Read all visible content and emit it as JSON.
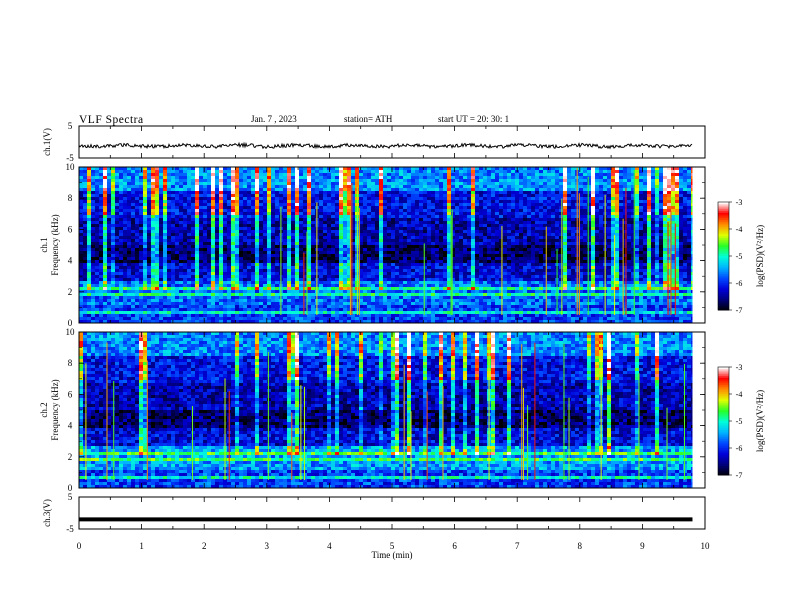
{
  "header": {
    "title": "VLF  Spectra",
    "date": "Jan.  7  , 2023",
    "station": "station= ATH",
    "start_ut": "start  UT  =   20: 30: 1"
  },
  "chart_data": [
    {
      "type": "line",
      "panel": "ch1-waveform",
      "ylabel": "ch.1(V)",
      "ylim": [
        -5,
        5
      ],
      "ytick_labels": [
        "5",
        "-5"
      ],
      "xlim": [
        0,
        10
      ],
      "series": [
        {
          "color": "#000000",
          "approx_level_volts": -1.2,
          "x_end_min": 9.8
        }
      ]
    },
    {
      "type": "heatmap",
      "panel": "ch1-spectrogram",
      "ylabel_line1": "ch.1",
      "ylabel_line2": "Frequency  (kHz)",
      "ylim": [
        0,
        10
      ],
      "ytick_labels": [
        "0",
        "2",
        "4",
        "6",
        "8",
        "10"
      ],
      "xlim": [
        0,
        10
      ],
      "data_x_end_min": 9.8,
      "colorbar": {
        "label": "log(PSD)(V²/Hz)",
        "range": [
          -7,
          -3
        ],
        "tick_labels": [
          "-7",
          "-6",
          "-5",
          "-4",
          "-3"
        ]
      }
    },
    {
      "type": "heatmap",
      "panel": "ch2-spectrogram",
      "ylabel_line1": "ch.2",
      "ylabel_line2": "Frequency  (kHz)",
      "ylim": [
        0,
        10
      ],
      "ytick_labels": [
        "0",
        "2",
        "4",
        "6",
        "8",
        "10"
      ],
      "xlim": [
        0,
        10
      ],
      "data_x_end_min": 9.8,
      "colorbar": {
        "label": "log(PSD)(V²/Hz)",
        "range": [
          -7,
          -3
        ],
        "tick_labels": [
          "-7",
          "-6",
          "-5",
          "-4",
          "-3"
        ]
      }
    },
    {
      "type": "line",
      "panel": "ch3-waveform",
      "ylabel": "ch.3(V)",
      "ylim": [
        -5,
        5
      ],
      "ytick_labels": [
        "5",
        "-5"
      ],
      "xlim": [
        0,
        10
      ],
      "series": [
        {
          "color": "#000000",
          "approx_level_volts": -2,
          "x_end_min": 9.8
        }
      ]
    }
  ],
  "x_axis": {
    "label": "Time  (min)",
    "tick_labels": [
      "0",
      "1",
      "2",
      "3",
      "4",
      "5",
      "6",
      "7",
      "8",
      "9",
      "10"
    ]
  },
  "colors": {
    "colormap": [
      "#000000",
      "#000078",
      "#0000d8",
      "#0048ff",
      "#00b4ff",
      "#00ffd8",
      "#28ff28",
      "#e0ff00",
      "#ff8c00",
      "#ff0000",
      "#ffffff"
    ]
  }
}
